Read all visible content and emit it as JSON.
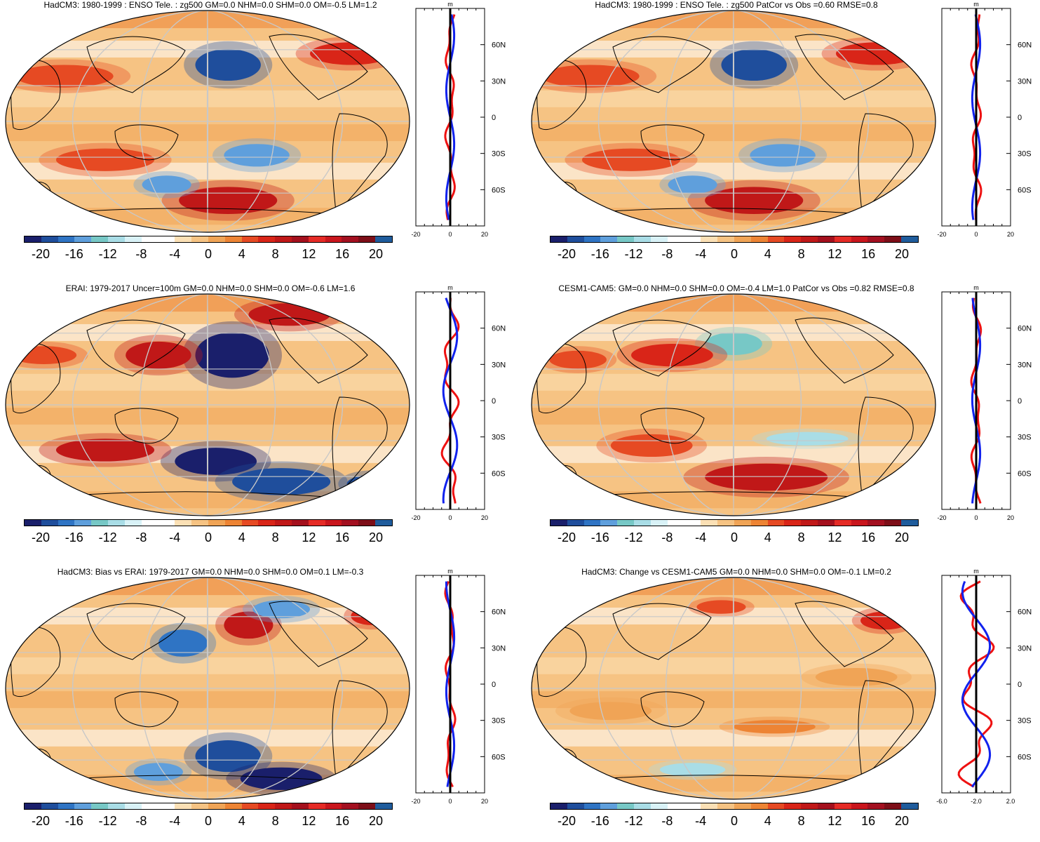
{
  "colorbar": {
    "colors": [
      "#1a1f6b",
      "#1f4e9c",
      "#2f74c4",
      "#5f9fdc",
      "#77c8c6",
      "#a9dde6",
      "#d9f2f7",
      "#ffffff",
      "#ffffff",
      "#fbe0b5",
      "#f6c383",
      "#f0a456",
      "#ed8434",
      "#e64a23",
      "#d92518",
      "#c01818",
      "#a4101d",
      "#e52b26",
      "#c9161d",
      "#a31020",
      "#7d0e18",
      "#1f5c9c"
    ],
    "labels": [
      "-20",
      "-16",
      "-12",
      "-8",
      "-4",
      "0",
      "4",
      "8",
      "12",
      "16",
      "20"
    ]
  },
  "panels": [
    {
      "title": "HadCM3: 1980-1999 : ENSO Tele. : zg500 GM=0.0 NHM=0.0 SHM=0.0 OM=-0.5 LM=1.2",
      "profile_unit": "m",
      "profile_xticks": [
        "-20",
        "0",
        "20"
      ],
      "profile_yticks": [
        "60N",
        "30N",
        "0",
        "30S",
        "60S"
      ]
    },
    {
      "title": "HadCM3: 1980-1999 : ENSO Tele. : zg500 PatCor vs Obs =0.60 RMSE=0.8",
      "profile_unit": "m",
      "profile_xticks": [
        "-20",
        "0",
        "20"
      ],
      "profile_yticks": [
        "60N",
        "30N",
        "0",
        "30S",
        "60S"
      ]
    },
    {
      "title": "ERAI: 1979-2017 Uncer=100m GM=0.0 NHM=0.0 SHM=0.0 OM=-0.6 LM=1.6",
      "profile_unit": "m",
      "profile_xticks": [
        "-20",
        "0",
        "20"
      ],
      "profile_yticks": [
        "60N",
        "30N",
        "0",
        "30S",
        "60S"
      ]
    },
    {
      "title": "CESM1-CAM5: GM=0.0 NHM=0.0 SHM=0.0 OM=-0.4 LM=1.0 PatCor vs Obs =0.82 RMSE=0.8",
      "profile_unit": "m",
      "profile_xticks": [
        "-20",
        "0",
        "20"
      ],
      "profile_yticks": [
        "60N",
        "30N",
        "0",
        "30S",
        "60S"
      ]
    },
    {
      "title": "HadCM3: Bias vs ERAI: 1979-2017 GM=0.0 NHM=0.0 SHM=0.0 OM=0.1 LM=-0.3",
      "profile_unit": "m",
      "profile_xticks": [
        "-20",
        "0",
        "20"
      ],
      "profile_yticks": [
        "60N",
        "30N",
        "0",
        "30S",
        "60S"
      ]
    },
    {
      "title": "HadCM3: Change vs CESM1-CAM5 GM=0.0 NHM=0.0 SHM=0.0 OM=-0.1 LM=0.2",
      "profile_unit": "m",
      "profile_xticks": [
        "-6.0",
        "-2.0",
        "2.0"
      ],
      "profile_yticks": [
        "60N",
        "30N",
        "0",
        "30S",
        "60S"
      ]
    }
  ]
}
